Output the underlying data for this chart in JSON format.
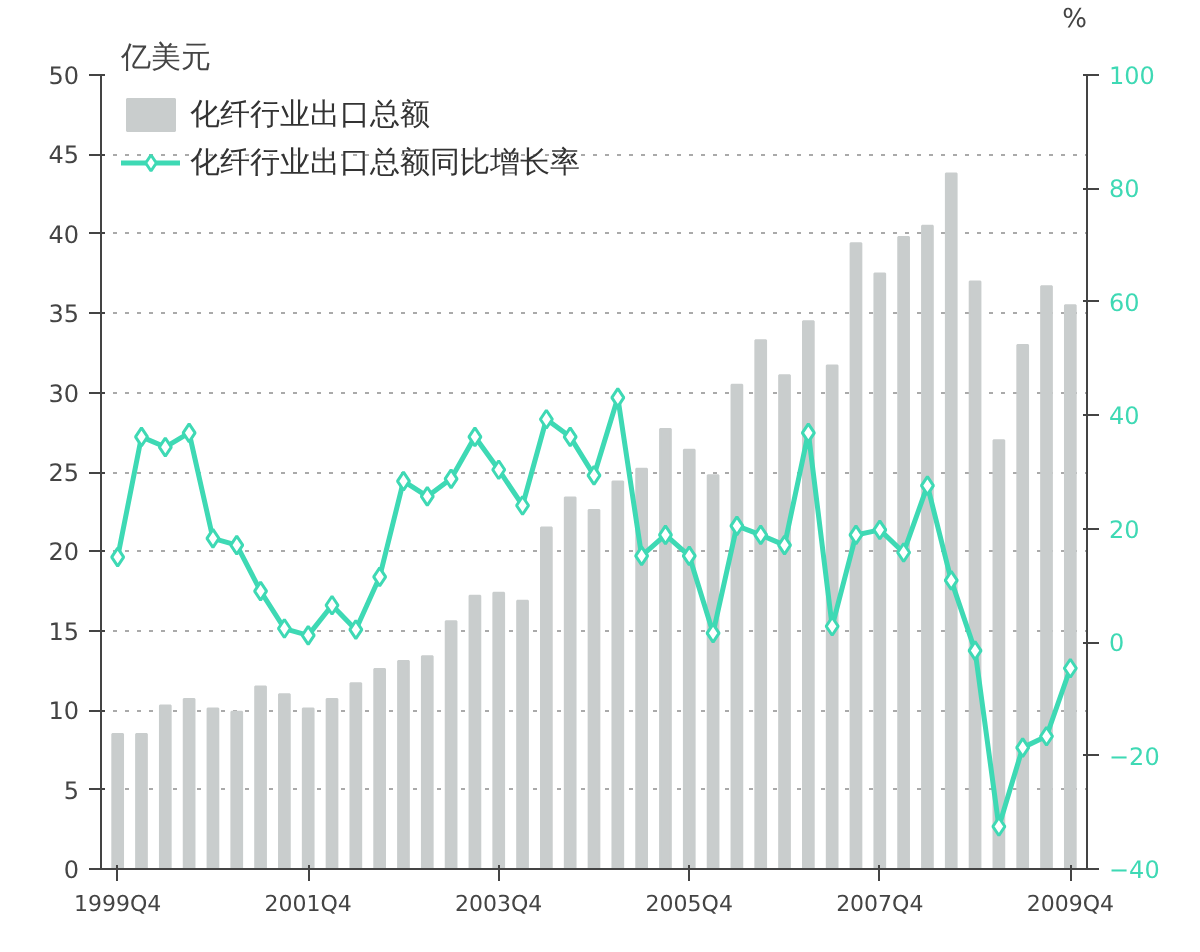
{
  "chart_data": {
    "type": "bar",
    "categories": [
      "1999Q4",
      null,
      null,
      null,
      null,
      null,
      null,
      null,
      "2001Q4",
      null,
      null,
      null,
      null,
      null,
      null,
      null,
      "2003Q4",
      null,
      null,
      null,
      null,
      null,
      null,
      null,
      "2005Q4",
      null,
      null,
      null,
      null,
      null,
      null,
      null,
      "2007Q4",
      null,
      null,
      null,
      null,
      null,
      null,
      null,
      "2009Q4"
    ],
    "ylabel": "亿美元",
    "y2label": "%",
    "ylim": [
      0,
      50
    ],
    "yticks": [
      0,
      5,
      10,
      15,
      20,
      25,
      30,
      35,
      40,
      45,
      50
    ],
    "y2lim": [
      -40,
      100
    ],
    "y2ticks": [
      -40,
      -20,
      0,
      20,
      40,
      60,
      80,
      100
    ],
    "grid": "y",
    "legend": "top left",
    "series": [
      {
        "name": "化纤行业出口总额",
        "color": "#c9cdcd",
        "values": [
          8.5,
          8.5,
          10.3,
          10.7,
          10.1,
          9.9,
          11.5,
          11.0,
          10.1,
          10.7,
          11.7,
          12.6,
          13.1,
          13.4,
          15.6,
          17.2,
          17.4,
          16.9,
          21.5,
          23.4,
          22.6,
          24.4,
          25.2,
          27.7,
          26.4,
          24.8,
          30.5,
          33.3,
          31.1,
          34.5,
          31.7,
          39.4,
          37.5,
          39.8,
          40.5,
          43.8,
          37.0,
          27.0,
          33.0,
          36.7,
          35.5
        ]
      },
      {
        "name": "化纤行业出口总额同比增长率",
        "type": "line",
        "axis": "y2",
        "color": "#3ed9b4",
        "marker": "diamond",
        "values": [
          15,
          36.2,
          34.4,
          36.9,
          18.3,
          17.1,
          9.0,
          2.4,
          1.2,
          6.5,
          2.2,
          11.5,
          28.4,
          25.7,
          28.8,
          36.2,
          30.4,
          24.1,
          39.3,
          36.2,
          29.4,
          43.1,
          15.2,
          18.9,
          15.2,
          1.6,
          20.5,
          18.9,
          17.1,
          36.9,
          2.8,
          18.9,
          19.8,
          15.8,
          27.6,
          10.9,
          -1.5,
          -32.5,
          -18.6,
          -16.6,
          -4.6
        ]
      }
    ]
  }
}
